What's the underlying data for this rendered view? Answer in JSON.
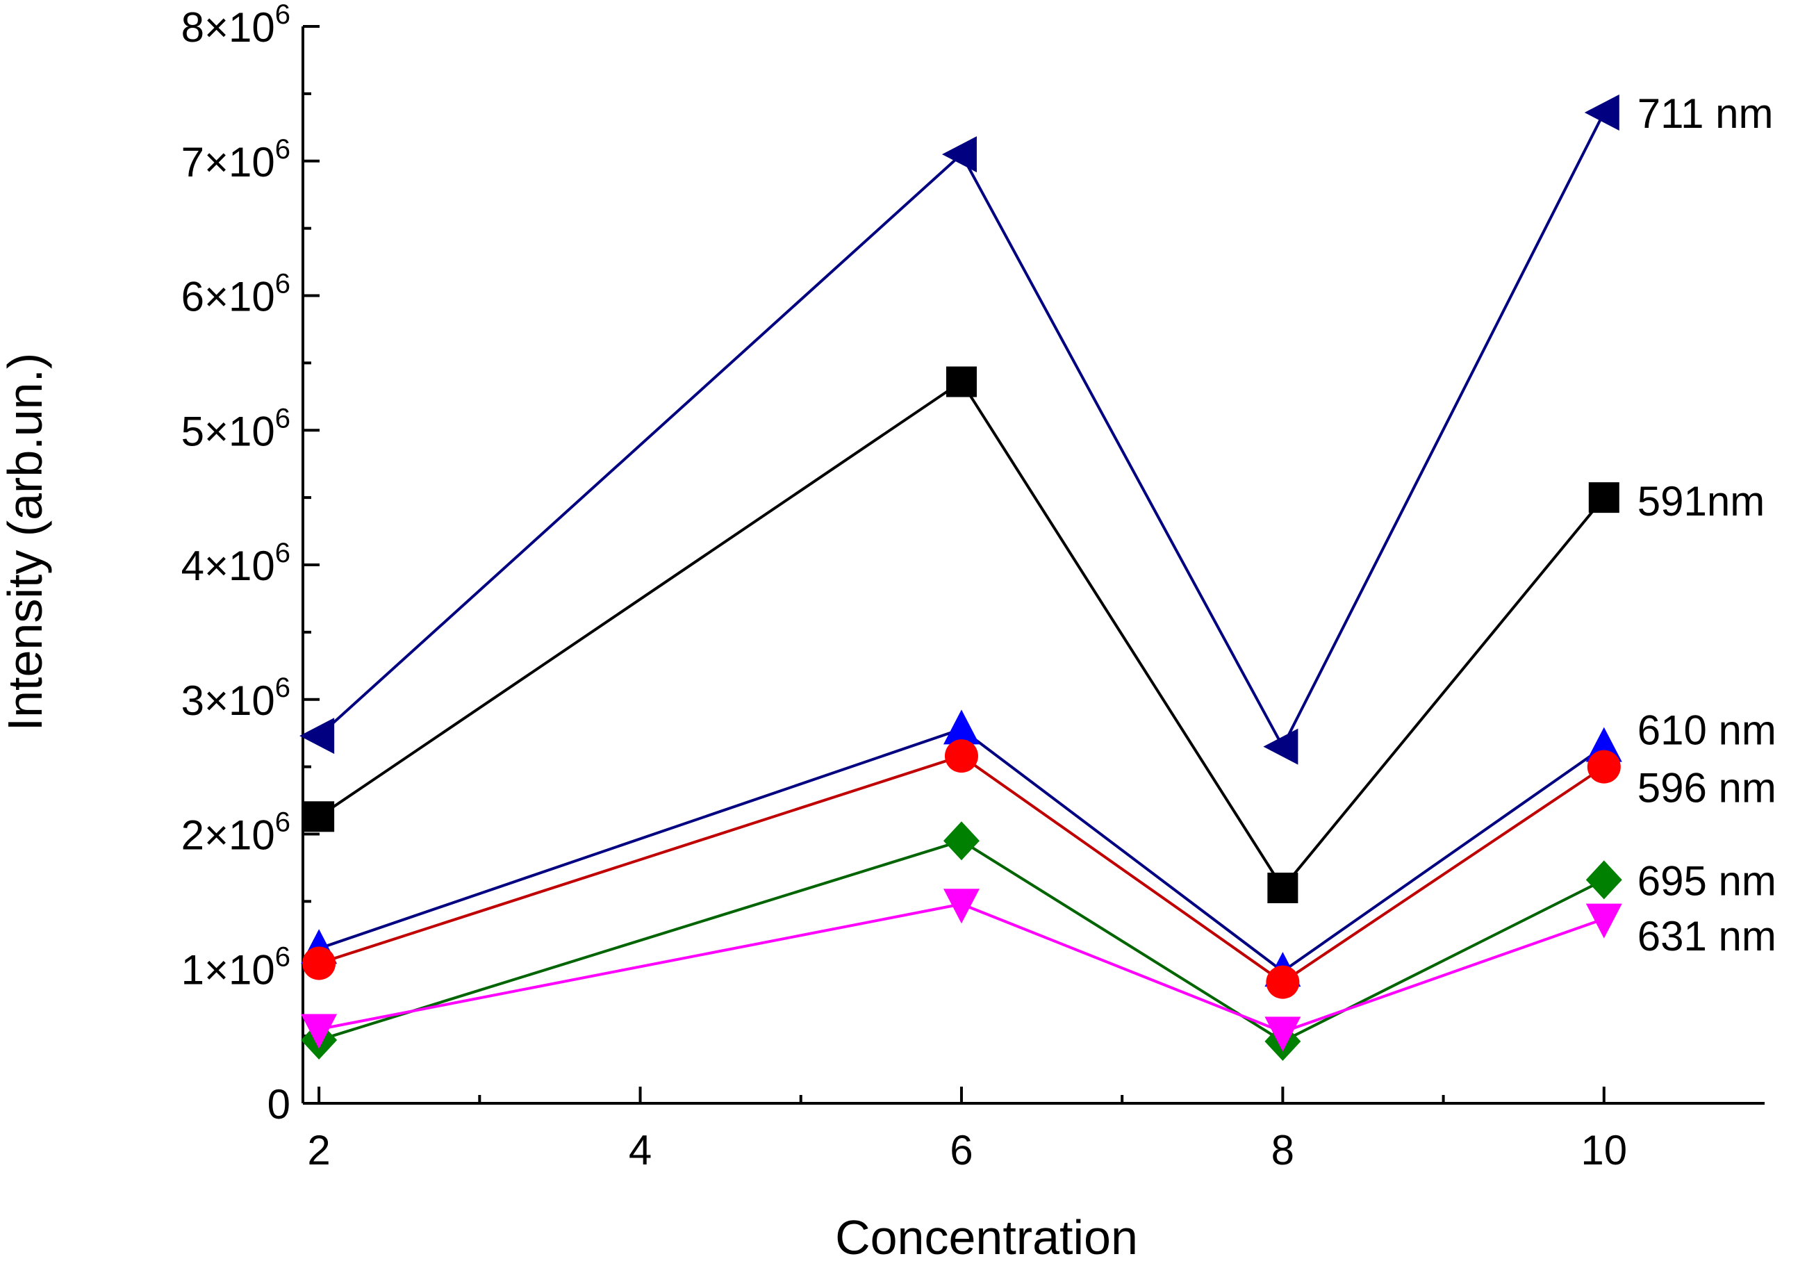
{
  "chart_data": {
    "type": "line",
    "title": "",
    "xlabel": "Concentration",
    "ylabel": "Intensity (arb.un.)",
    "xlim": [
      1.9,
      11.0
    ],
    "ylim": [
      0,
      8000000
    ],
    "x": [
      2,
      6,
      8,
      10
    ],
    "x_ticks": [
      {
        "value": 2,
        "label": "2"
      },
      {
        "value": 4,
        "label": "4"
      },
      {
        "value": 6,
        "label": "6"
      },
      {
        "value": 8,
        "label": "8"
      },
      {
        "value": 10,
        "label": "10"
      }
    ],
    "y_ticks": [
      {
        "value": 0,
        "label": "0",
        "mantissa": "",
        "exp": ""
      },
      {
        "value": 1000000,
        "label": "1×10^6",
        "mantissa": "1×10",
        "exp": "6"
      },
      {
        "value": 2000000,
        "label": "2×10^6",
        "mantissa": "2×10",
        "exp": "6"
      },
      {
        "value": 3000000,
        "label": "3×10^6",
        "mantissa": "3×10",
        "exp": "6"
      },
      {
        "value": 4000000,
        "label": "4×10^6",
        "mantissa": "4×10",
        "exp": "6"
      },
      {
        "value": 5000000,
        "label": "5×10^6",
        "mantissa": "5×10",
        "exp": "6"
      },
      {
        "value": 6000000,
        "label": "6×10^6",
        "mantissa": "6×10",
        "exp": "6"
      },
      {
        "value": 7000000,
        "label": "7×10^6",
        "mantissa": "7×10",
        "exp": "6"
      },
      {
        "value": 8000000,
        "label": "8×10^6",
        "mantissa": "8×10",
        "exp": "6"
      }
    ],
    "grid": false,
    "series": [
      {
        "name": "711 nm",
        "color": "#000080",
        "marker": "triangle-left",
        "values": [
          2730000,
          7050000,
          2650000,
          7360000
        ],
        "label_value": 7360000
      },
      {
        "name": "591nm",
        "color": "#000000",
        "marker": "square",
        "values": [
          2130000,
          5360000,
          1600000,
          4500000
        ],
        "label_value": 4480000
      },
      {
        "name": "610 nm",
        "color": "#0000ff",
        "marker": "triangle-up",
        "line_color": "#000080",
        "values": [
          1150000,
          2780000,
          980000,
          2650000
        ],
        "label_value": 2780000
      },
      {
        "name": "596 nm",
        "color": "#ff0000",
        "marker": "circle",
        "line_color": "#c00000",
        "values": [
          1040000,
          2580000,
          900000,
          2500000
        ],
        "label_value": 2350000
      },
      {
        "name": "695 nm",
        "color": "#008000",
        "marker": "diamond",
        "line_color": "#006400",
        "values": [
          470000,
          1950000,
          460000,
          1660000
        ],
        "label_value": 1660000
      },
      {
        "name": "631 nm",
        "color": "#ff00ff",
        "marker": "triangle-down",
        "values": [
          550000,
          1480000,
          530000,
          1370000
        ],
        "label_value": 1250000
      }
    ]
  }
}
